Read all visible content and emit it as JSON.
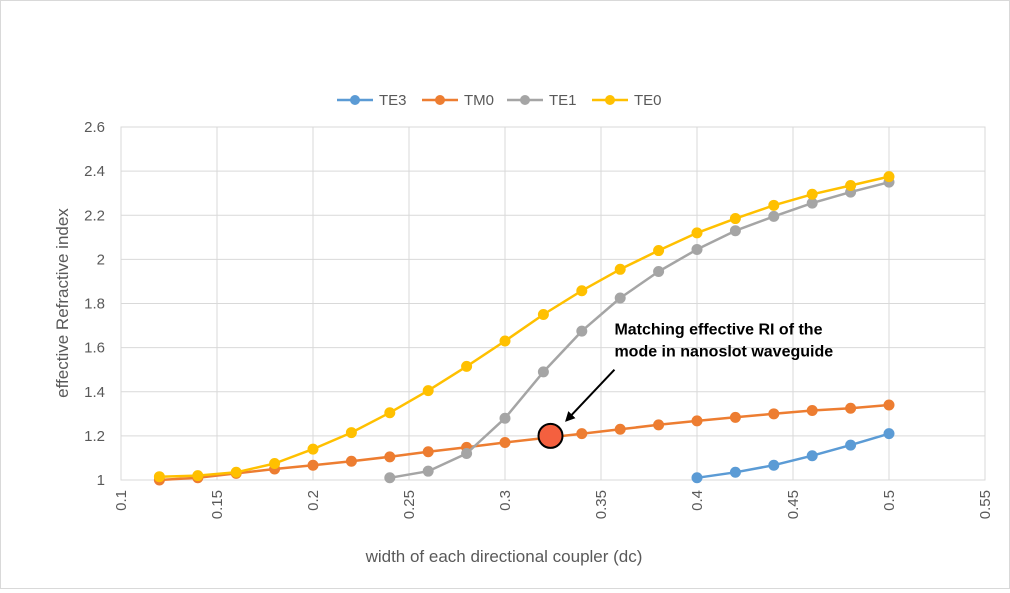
{
  "chart_data": {
    "type": "line",
    "title": "",
    "xlabel": "width of each directional coupler (dc)",
    "ylabel": "effective Refractive index",
    "xlim": [
      0.1,
      0.55
    ],
    "ylim": [
      1,
      2.6
    ],
    "xticks": [
      "0.1",
      "0.15",
      "0.2",
      "0.25",
      "0.3",
      "0.35",
      "0.4",
      "0.45",
      "0.5",
      "0.55"
    ],
    "yticks": [
      "1",
      "1.2",
      "1.4",
      "1.6",
      "1.8",
      "2",
      "2.2",
      "2.4",
      "2.6"
    ],
    "grid": true,
    "legend_position": "top",
    "series": [
      {
        "name": "TE3",
        "color": "#5B9BD5",
        "x": [
          0.4,
          0.42,
          0.44,
          0.46,
          0.48,
          0.5
        ],
        "y": [
          1.01,
          1.035,
          1.067,
          1.11,
          1.158,
          1.21
        ]
      },
      {
        "name": "TM0",
        "color": "#ED7D31",
        "x": [
          0.12,
          0.14,
          0.16,
          0.18,
          0.2,
          0.22,
          0.24,
          0.26,
          0.28,
          0.3,
          0.32,
          0.34,
          0.36,
          0.38,
          0.4,
          0.42,
          0.44,
          0.46,
          0.48,
          0.5
        ],
        "y": [
          1.0,
          1.01,
          1.03,
          1.05,
          1.067,
          1.085,
          1.105,
          1.128,
          1.148,
          1.17,
          1.19,
          1.21,
          1.23,
          1.25,
          1.268,
          1.284,
          1.3,
          1.315,
          1.325,
          1.34
        ]
      },
      {
        "name": "TE1",
        "color": "#A5A5A5",
        "x": [
          0.24,
          0.26,
          0.28,
          0.3,
          0.32,
          0.34,
          0.36,
          0.38,
          0.4,
          0.42,
          0.44,
          0.46,
          0.48,
          0.5
        ],
        "y": [
          1.01,
          1.04,
          1.12,
          1.28,
          1.49,
          1.675,
          1.825,
          1.945,
          2.045,
          2.13,
          2.195,
          2.255,
          2.305,
          2.35
        ]
      },
      {
        "name": "TE0",
        "color": "#FFC000",
        "x": [
          0.12,
          0.14,
          0.16,
          0.18,
          0.2,
          0.22,
          0.24,
          0.26,
          0.28,
          0.3,
          0.32,
          0.34,
          0.36,
          0.38,
          0.4,
          0.42,
          0.44,
          0.46,
          0.48,
          0.5
        ],
        "y": [
          1.015,
          1.02,
          1.035,
          1.075,
          1.14,
          1.215,
          1.305,
          1.405,
          1.515,
          1.63,
          1.75,
          1.858,
          1.955,
          2.04,
          2.12,
          2.185,
          2.245,
          2.295,
          2.335,
          2.375
        ]
      }
    ],
    "marker_point": {
      "x": 0.3237,
      "y": 1.2,
      "color": "#F4603F"
    },
    "annotation": {
      "lines": [
        "Matching effective RI of the",
        "mode in nanoslot waveguide"
      ],
      "text_anchor_x": 0.357,
      "text_anchor_y": 1.66,
      "arrow_from_x": 0.357,
      "arrow_from_y": 1.5,
      "arrow_to_x": 0.332,
      "arrow_to_y": 1.27
    }
  }
}
